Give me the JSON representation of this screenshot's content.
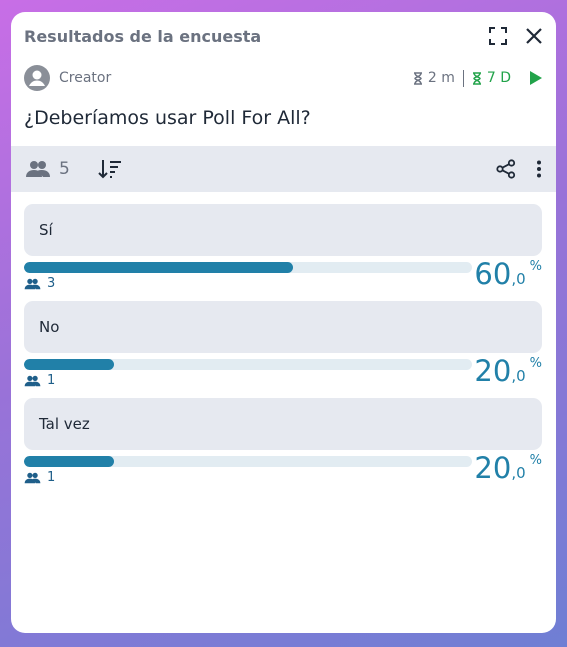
{
  "header": {
    "title": "Resultados de la encuesta",
    "icons": [
      "fullscreen-icon",
      "close-icon"
    ]
  },
  "meta": {
    "creator": "Creator",
    "timer_short": "2 m",
    "timer_long": "7 D"
  },
  "question": "¿Deberíamos usar Poll For All?",
  "toolbar": {
    "participants": "5",
    "icons": [
      "users-icon",
      "sort-icon",
      "share-icon",
      "more-options-icon"
    ]
  },
  "options": [
    {
      "label": "Sí",
      "votes": "3",
      "pct_int": "60",
      "pct_dec": ",0",
      "pct_sign": "%",
      "fill": 0.6
    },
    {
      "label": "No",
      "votes": "1",
      "pct_int": "20",
      "pct_dec": ",0",
      "pct_sign": "%",
      "fill": 0.2
    },
    {
      "label": "Tal vez",
      "votes": "1",
      "pct_int": "20",
      "pct_dec": ",0",
      "pct_sign": "%",
      "fill": 0.2
    }
  ],
  "colors": {
    "accent": "#2180a8",
    "timer_active": "#22a34a",
    "muted": "#6b7280",
    "panel": "#e6e9f0"
  }
}
